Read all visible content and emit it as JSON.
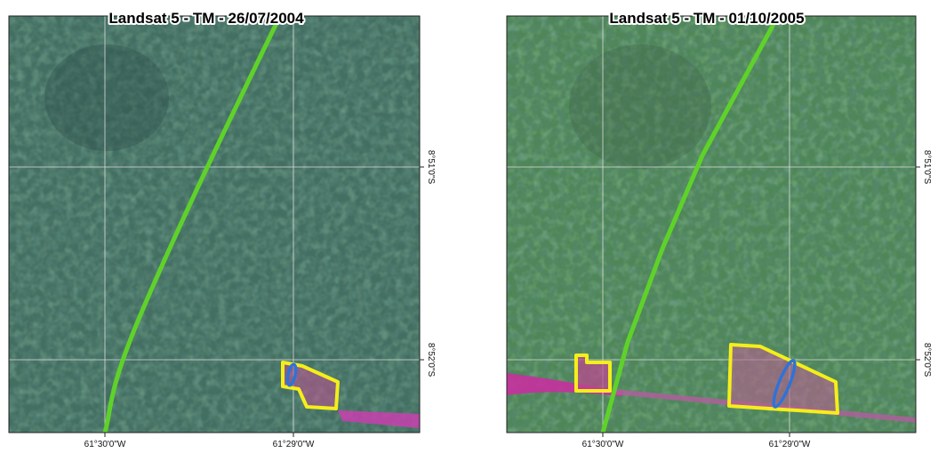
{
  "panels": [
    {
      "title": "Landsat 5 - TM - 26/07/2004",
      "x_labels": [
        "61°30'0\"W",
        "61°29'0\"W"
      ],
      "y_labels": [
        "8°51'0\"S",
        "8°52'0\"S"
      ]
    },
    {
      "title": "Landsat 5 - TM - 01/10/2005",
      "x_labels": [
        "61°30'0\"W",
        "61°29'0\"W"
      ],
      "y_labels": [
        "8°51'0\"S",
        "8°52'0\"S"
      ]
    }
  ]
}
